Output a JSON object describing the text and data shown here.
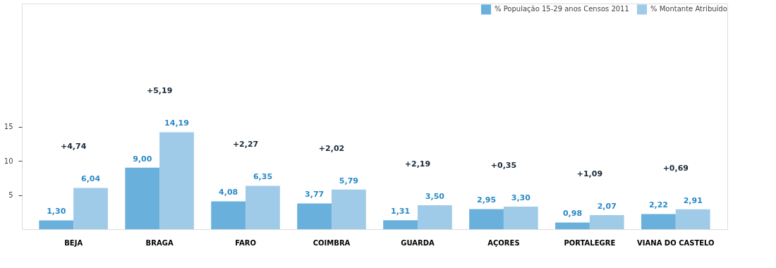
{
  "chart_data": {
    "type": "bar",
    "categories": [
      "BEJA",
      "BRAGA",
      "FARO",
      "COIMBRA",
      "GUARDA",
      "AÇORES",
      "PORTALEGRE",
      "VIANA DO CASTELO"
    ],
    "series": [
      {
        "name": "% População 15-29 anos Censos 2011",
        "color": "#6ab0dc",
        "values": [
          1.3,
          9.0,
          4.08,
          3.77,
          1.31,
          2.95,
          0.98,
          2.22
        ],
        "value_labels": [
          "1,30",
          "9,00",
          "4,08",
          "3,77",
          "1,31",
          "2,95",
          "0,98",
          "2,22"
        ]
      },
      {
        "name": "% Montante Atribuído",
        "color": "#9fcbe9",
        "values": [
          6.04,
          14.19,
          6.35,
          5.79,
          3.5,
          3.3,
          2.07,
          2.91
        ],
        "value_labels": [
          "6,04",
          "14,19",
          "6,35",
          "5,79",
          "3,50",
          "3,30",
          "2,07",
          "2,91"
        ]
      }
    ],
    "ylim": [
      0,
      33
    ],
    "yticks": [
      5,
      10,
      15
    ],
    "grid": false,
    "legend": "top right",
    "annotations": [
      "+4,74",
      "+5,19",
      "+2,27",
      "+2,02",
      "+2,19",
      "+0,35",
      "+1,09",
      "+0,69"
    ]
  }
}
